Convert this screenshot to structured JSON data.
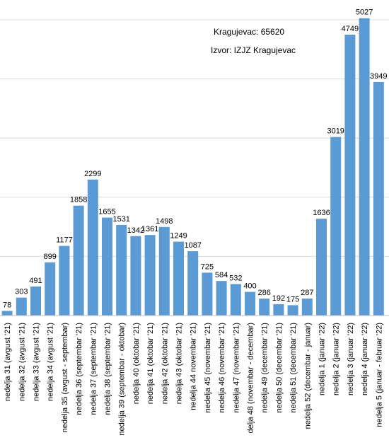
{
  "annotations": {
    "population": "Kragujevac: 65620",
    "source": "Izvor: IZJZ Kragujevac"
  },
  "colors": {
    "bar": "#5B9BD5",
    "grid": "#D9D9D9",
    "axis": "#BFBFBF"
  },
  "chart_data": {
    "type": "bar",
    "title": "",
    "xlabel": "",
    "ylabel": "",
    "ylim": [
      0,
      5000
    ],
    "grid": true,
    "y_ticks_visible": false,
    "categories": [
      "nedelja 31 (avgust '21)",
      "nedelja 32 (avgust '21)",
      "nedelja 33 (avgust '21)",
      "nedelja 34 (avgust '21)",
      "nedelja 35 (avgust - septembar)",
      "nedelja 36 (septembar '21)",
      "nedelja 37 (septembar '21)",
      "nedelja 38 (septembar '21)",
      "nedelja 39 (septembar - oktobar)",
      "nedelja 40 (oktobar '21)",
      "nedelja 41 (oktobar '21)",
      "nedelja 42 (oktobar '21)",
      "nedelja 43 (oktobar '21)",
      "nedelja 44 novembar '21)",
      "nedelja 45 (novembar '21)",
      "nedelja 46 (novembar '21)",
      "nedelja 47 (novembar '21)",
      "delja 48 (novembar - decembar)",
      "nedelja 49 (decembar '21)",
      "nedelja 50 (decembar '21)",
      "nedelja 51 (decembar '21)",
      "nedelja 52 (decembar - januar)",
      "nedelja 1 (januar '22)",
      "nedelja 2 (januar '22)",
      "nedelja 3 (januar '22)",
      "nedelja 4 (januar '22)",
      "nedelja 5 (januar - februar '22)"
    ],
    "values": [
      78,
      303,
      491,
      899,
      1177,
      1858,
      2299,
      1655,
      1531,
      1342,
      1361,
      1498,
      1249,
      1087,
      725,
      584,
      532,
      400,
      286,
      192,
      175,
      287,
      1636,
      3019,
      4749,
      5027,
      3949
    ],
    "data_labels": [
      "78",
      "303",
      "491",
      "899",
      "1177",
      "1858",
      "2299",
      "1655",
      "1531",
      "1342",
      "1361",
      "1498",
      "1249",
      "1087",
      "725",
      "584",
      "532",
      "400",
      "286",
      "192",
      "175",
      "287",
      "1636",
      "3019",
      "4749",
      "5027",
      "3949"
    ]
  }
}
